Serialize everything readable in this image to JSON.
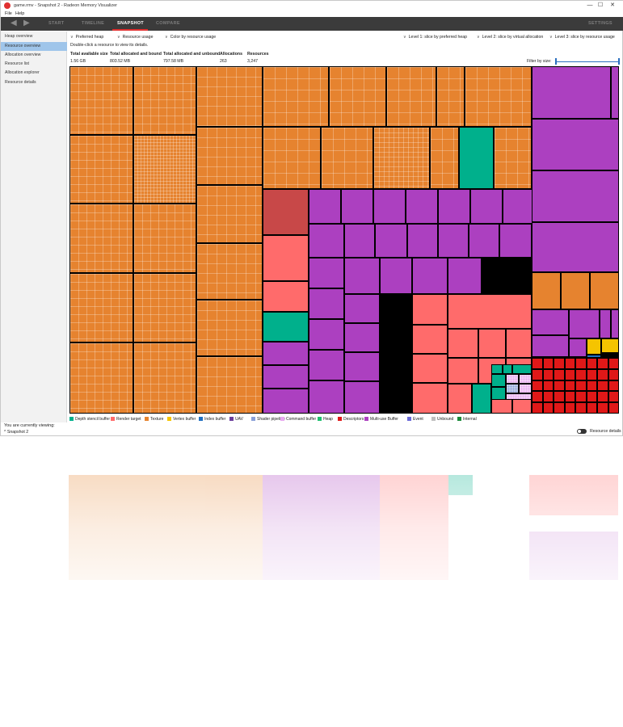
{
  "window": {
    "title": "game.rmv - Snapshot 2 - Radeon Memory Visualizer",
    "minimize": "—",
    "maximize": "☐",
    "close": "✕"
  },
  "menu": [
    "File",
    "Help"
  ],
  "nav": {
    "tabs": [
      "START",
      "TIMELINE",
      "SNAPSHOT",
      "COMPARE"
    ],
    "active": "SNAPSHOT",
    "settings": "SETTINGS",
    "back_icon": "back-arrow-icon",
    "forward_icon": "forward-arrow-icon"
  },
  "sidebar": {
    "items": [
      "Heap overview",
      "Resource overview",
      "Allocation overview",
      "Resource list",
      "Allocation explorer",
      "Resource details"
    ],
    "selected": "Resource overview",
    "viewing_label": "You are currently viewing:",
    "viewing_value": "Snapshot 2"
  },
  "controls": {
    "preferred_heap": "Preferred heap",
    "resource_usage": "Resource usage",
    "color_by": "Color by resource usage",
    "level1": "Level 1: slice by preferred heap",
    "level2": "Level 2: slice by virtual allocation",
    "level3": "Level 3: slice by resource usage"
  },
  "hint": "Double-click a resource to view its details.",
  "stats": [
    {
      "label": "Total available size",
      "value": "1.56 GB"
    },
    {
      "label": "Total allocated and bound",
      "value": "803.52 MB"
    },
    {
      "label": "Total allocated and unbound",
      "value": "797.58 MB"
    },
    {
      "label": "Allocations",
      "value": "263"
    },
    {
      "label": "Resources",
      "value": "3,247"
    }
  ],
  "filter": {
    "label": "Filter by size:",
    "min": 0,
    "max": 1
  },
  "legend": [
    {
      "name": "Depth stencil buffer",
      "color": "#00b08c"
    },
    {
      "name": "Render target",
      "color": "#ff6b6b"
    },
    {
      "name": "Texture",
      "color": "#e6832f"
    },
    {
      "name": "Vertex buffer",
      "color": "#f5c400"
    },
    {
      "name": "Index buffer",
      "color": "#1f6fc1"
    },
    {
      "name": "UAV",
      "color": "#6a3e9c"
    },
    {
      "name": "Shader pipeline",
      "color": "#8aa0d8"
    },
    {
      "name": "Command buffer",
      "color": "#e8a8f0"
    },
    {
      "name": "Heap",
      "color": "#1fbf6f"
    },
    {
      "name": "Descriptors",
      "color": "#e01818"
    },
    {
      "name": "Multi-use Buffer",
      "color": "#ac40c0"
    },
    {
      "name": "Event",
      "color": "#6a6ad8"
    },
    {
      "name": "Unbound",
      "color": "#c0c0c0"
    },
    {
      "name": "Internal",
      "color": "#1a8a3a"
    }
  ],
  "resource_details_label": "Resource details"
}
